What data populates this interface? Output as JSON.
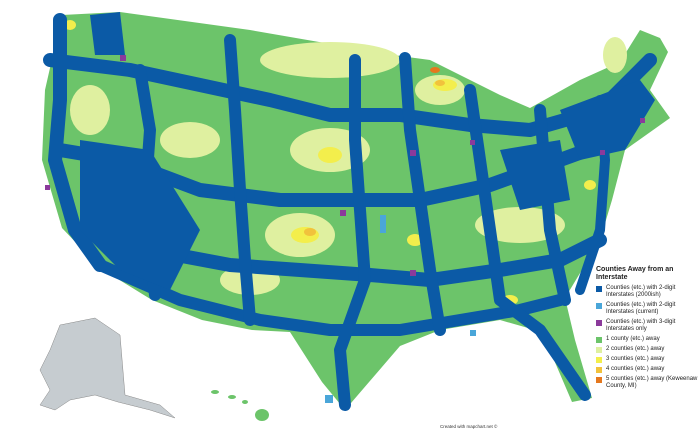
{
  "legend": {
    "title": "Counties Away from an Interstate",
    "items": [
      {
        "label": "Counties (etc.) with 2-digit Interstates (2000ish)",
        "color": "#0b5aa6"
      },
      {
        "label": "Counties (etc.) with 2-digit Interstates (current)",
        "color": "#4aa6d9"
      },
      {
        "label": "Counties (etc.) with 3-digit Interstates only",
        "color": "#8b3a9b"
      },
      {
        "label": "1 county (etc.) away",
        "color": "#6cc46a"
      },
      {
        "label": "2 counties (etc.) away",
        "color": "#dff0a0"
      },
      {
        "label": "3 counties (etc.) away",
        "color": "#f3ee4c"
      },
      {
        "label": "4 counties (etc.) away",
        "color": "#f1c23c"
      },
      {
        "label": "5 counties (etc.) away (Keweenaw County, MI)",
        "color": "#e5781e"
      }
    ]
  },
  "footer": "Created with mapchart.net ©"
}
